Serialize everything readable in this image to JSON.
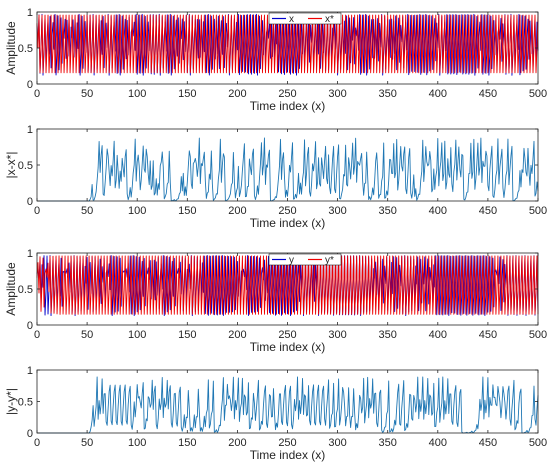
{
  "chart_data": [
    {
      "type": "line",
      "xlabel": "Time index (x)",
      "ylabel": "Amplitude",
      "xlim": [
        0,
        500
      ],
      "ylim": [
        0,
        1
      ],
      "xticks": [
        "0",
        "50",
        "100",
        "150",
        "200",
        "250",
        "300",
        "350",
        "400",
        "450",
        "500"
      ],
      "yticks": [
        "0",
        "0.5",
        "1"
      ],
      "grid": false,
      "legend": "top-center",
      "series": [
        {
          "name": "x",
          "color": "#0000cc",
          "generator": "chaotic",
          "seed": 0.312,
          "mu": 3.87
        },
        {
          "name": "x*",
          "color": "#ee0000",
          "generator": "chaotic",
          "seed": 0.6721,
          "mu": 3.83
        }
      ]
    },
    {
      "type": "line",
      "xlabel": "Time index (x)",
      "ylabel": "|x-x*|",
      "xlim": [
        0,
        500
      ],
      "ylim": [
        0,
        1
      ],
      "xticks": [
        "0",
        "50",
        "100",
        "150",
        "200",
        "250",
        "300",
        "350",
        "400",
        "450",
        "500"
      ],
      "yticks": [
        "0",
        "0.5",
        "1"
      ],
      "grid": false,
      "zero_until": 52,
      "series": [
        {
          "name": "",
          "color": "#1f77b4",
          "generator": "absdiff",
          "seed": 0.5531,
          "mu": 3.9
        }
      ]
    },
    {
      "type": "line",
      "xlabel": "Time index (x)",
      "ylabel": "Amplitude",
      "xlim": [
        0,
        500
      ],
      "ylim": [
        0,
        1
      ],
      "xticks": [
        "0",
        "50",
        "100",
        "150",
        "200",
        "250",
        "300",
        "350",
        "400",
        "450",
        "500"
      ],
      "yticks": [
        "0",
        "0.5",
        "1"
      ],
      "grid": false,
      "legend": "top-center",
      "series": [
        {
          "name": "y",
          "color": "#0000cc",
          "generator": "chaotic",
          "seed": 0.2417,
          "mu": 3.86
        },
        {
          "name": "y*",
          "color": "#ee0000",
          "generator": "chaotic",
          "seed": 0.7813,
          "mu": 3.84
        }
      ]
    },
    {
      "type": "line",
      "xlabel": "Time index (x)",
      "ylabel": "|y-y*|",
      "xlim": [
        0,
        500
      ],
      "ylim": [
        0,
        1
      ],
      "xticks": [
        "0",
        "50",
        "100",
        "150",
        "200",
        "250",
        "300",
        "350",
        "400",
        "450",
        "500"
      ],
      "yticks": [
        "0",
        "0.5",
        "1"
      ],
      "grid": false,
      "zero_until": 52,
      "series": [
        {
          "name": "",
          "color": "#1f77b4",
          "generator": "absdiff",
          "seed": 0.4187,
          "mu": 3.91
        }
      ]
    }
  ]
}
